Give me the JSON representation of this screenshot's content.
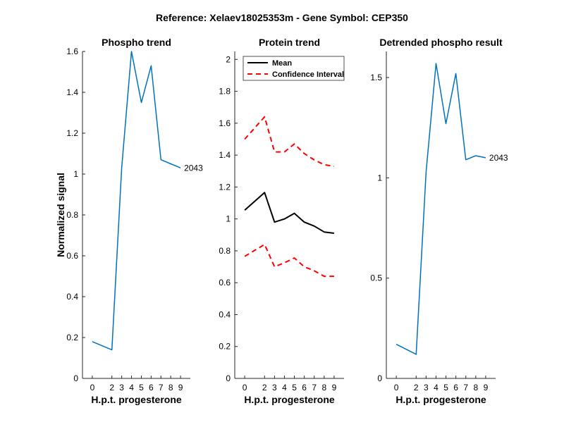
{
  "suptitle": "Reference:  Xelaev18025353m - Gene Symbol:  CEP350",
  "colors": {
    "phospho": "#0072BD",
    "mean": "#000000",
    "ci": "#FF0000",
    "axis": "#262626"
  },
  "chart_data": [
    {
      "type": "line",
      "title": "Phospho trend",
      "xlabel": "H.p.t. progesterone",
      "ylabel": "Normalized signal",
      "xticks": [
        0,
        2,
        3,
        4,
        5,
        6,
        7,
        8,
        9
      ],
      "yticks": [
        0,
        0.2,
        0.4,
        0.6,
        0.8,
        1,
        1.2,
        1.4,
        1.6
      ],
      "ytick_labels": [
        "0",
        "0.2",
        "0.4",
        "0.6",
        "0.8",
        "1",
        "1.2",
        "1.4",
        "1.6"
      ],
      "ylim": [
        0,
        1.6
      ],
      "series": [
        {
          "name": "",
          "x": [
            0,
            2,
            3,
            4,
            5,
            6,
            7,
            8,
            9
          ],
          "y": [
            0.18,
            0.14,
            1.03,
            1.6,
            1.35,
            1.53,
            1.07,
            1.05,
            1.03
          ],
          "color": "#0072BD",
          "dash": false
        }
      ],
      "end_label": "2043"
    },
    {
      "type": "line",
      "title": "Protein trend",
      "xlabel": "H.p.t. progesterone",
      "ylabel": "",
      "xticks": [
        0,
        2,
        3,
        4,
        5,
        6,
        7,
        8,
        9
      ],
      "yticks": [
        0,
        0.2,
        0.4,
        0.6,
        0.8,
        1,
        1.2,
        1.4,
        1.6,
        1.8,
        2
      ],
      "ytick_labels": [
        "0",
        "0.2",
        "0.4",
        "0.6",
        "0.8",
        "1",
        "1.2",
        "1.4",
        "1.6",
        "1.8",
        "2"
      ],
      "ylim": [
        0,
        2.05
      ],
      "series": [
        {
          "name": "Mean",
          "x": [
            0,
            2,
            3,
            4,
            5,
            6,
            7,
            8,
            9
          ],
          "y": [
            1.055,
            1.165,
            0.98,
            1.0,
            1.035,
            0.98,
            0.955,
            0.918,
            0.91
          ],
          "color": "#000000",
          "dash": false
        },
        {
          "name": "Confidence Interval",
          "x": [
            0,
            2,
            3,
            4,
            5,
            6,
            7,
            8,
            9
          ],
          "y": [
            1.5,
            1.64,
            1.42,
            1.42,
            1.47,
            1.41,
            1.37,
            1.34,
            1.33
          ],
          "color": "#FF0000",
          "dash": true
        },
        {
          "name": "",
          "x": [
            0,
            2,
            3,
            4,
            5,
            6,
            7,
            8,
            9
          ],
          "y": [
            0.765,
            0.84,
            0.7,
            0.725,
            0.755,
            0.7,
            0.675,
            0.64,
            0.64
          ],
          "color": "#FF0000",
          "dash": true
        }
      ],
      "legend": {
        "placement": "top-left",
        "entries": [
          "Mean",
          "Confidence Interval"
        ]
      }
    },
    {
      "type": "line",
      "title": "Detrended phospho result",
      "xlabel": "H.p.t. progesterone",
      "ylabel": "",
      "xticks": [
        0,
        2,
        3,
        4,
        5,
        6,
        7,
        8,
        9
      ],
      "yticks": [
        0,
        0.5,
        1,
        1.5
      ],
      "ytick_labels": [
        "0",
        "0.5",
        "1",
        "1.5"
      ],
      "ylim": [
        0,
        1.63
      ],
      "series": [
        {
          "name": "",
          "x": [
            0,
            2,
            3,
            4,
            5,
            6,
            7,
            8,
            9
          ],
          "y": [
            0.17,
            0.12,
            1.03,
            1.57,
            1.27,
            1.52,
            1.09,
            1.11,
            1.1
          ],
          "color": "#0072BD",
          "dash": false
        }
      ],
      "end_label": "2043"
    }
  ]
}
